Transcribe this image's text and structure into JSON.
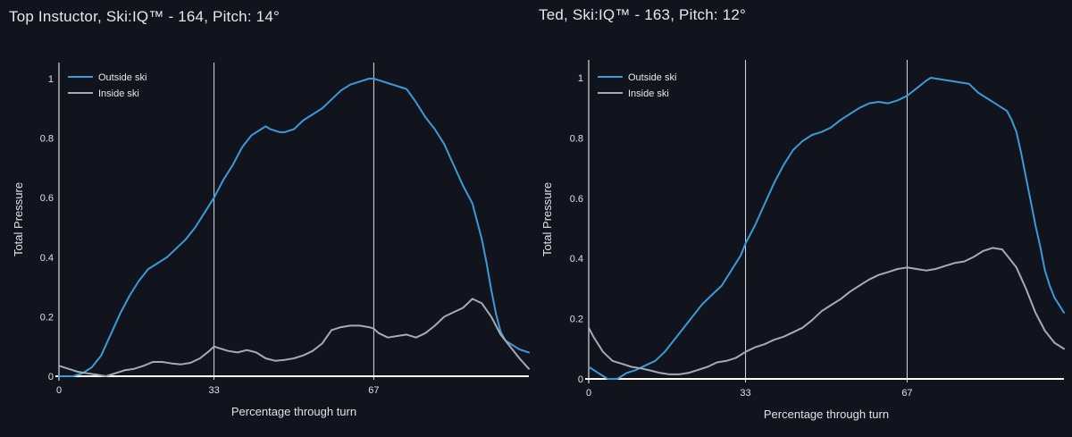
{
  "chart_data": [
    {
      "type": "line",
      "title": "Top Instuctor, Ski:IQ™ - 164, Pitch: 14°",
      "xlabel": "Percentage through turn",
      "ylabel": "Total Pressure",
      "xlim": [
        0,
        100
      ],
      "ylim": [
        0,
        1.05
      ],
      "xticks": [
        0,
        33,
        67
      ],
      "yticks": [
        0,
        0.2,
        0.4,
        0.6,
        0.8,
        1
      ],
      "ytick_labels": [
        "0",
        "0.2",
        "0.4",
        "0.6",
        "0.8",
        "1"
      ],
      "vlines": [
        33,
        67
      ],
      "grid": false,
      "legend_position": "top-left",
      "series": [
        {
          "name": "Outside ski",
          "color": "#3b9ad9",
          "x": [
            0,
            3,
            5,
            7,
            9,
            11,
            13,
            15,
            17,
            19,
            21,
            23,
            25,
            27,
            29,
            31,
            33,
            35,
            37,
            39,
            41,
            43,
            44,
            45,
            47,
            48,
            50,
            52,
            54,
            56,
            58,
            60,
            62,
            64,
            66,
            67,
            68,
            70,
            72,
            73,
            74,
            76,
            78,
            80,
            82,
            84,
            86,
            88,
            89,
            90,
            91,
            92,
            93,
            94,
            95,
            96,
            97,
            98,
            99,
            100
          ],
          "y": [
            0.0,
            0.0,
            0.01,
            0.03,
            0.07,
            0.14,
            0.21,
            0.27,
            0.32,
            0.36,
            0.38,
            0.4,
            0.43,
            0.46,
            0.5,
            0.55,
            0.6,
            0.66,
            0.71,
            0.77,
            0.81,
            0.83,
            0.84,
            0.83,
            0.82,
            0.82,
            0.83,
            0.86,
            0.88,
            0.9,
            0.93,
            0.96,
            0.98,
            0.99,
            1.0,
            1.0,
            0.995,
            0.985,
            0.975,
            0.97,
            0.965,
            0.92,
            0.87,
            0.83,
            0.78,
            0.71,
            0.64,
            0.58,
            0.52,
            0.46,
            0.38,
            0.29,
            0.21,
            0.15,
            0.12,
            0.11,
            0.1,
            0.09,
            0.085,
            0.08
          ]
        },
        {
          "name": "Inside ski",
          "color": "#a2acb8",
          "x": [
            0,
            2,
            4,
            6,
            8,
            10,
            12,
            14,
            16,
            18,
            20,
            22,
            24,
            26,
            28,
            30,
            32,
            33,
            34,
            36,
            38,
            40,
            42,
            44,
            46,
            48,
            50,
            52,
            54,
            56,
            58,
            60,
            62,
            64,
            66,
            67,
            68,
            70,
            72,
            74,
            76,
            78,
            80,
            82,
            84,
            86,
            88,
            90,
            92,
            94,
            96,
            98,
            100
          ],
          "y": [
            0.035,
            0.025,
            0.015,
            0.01,
            0.005,
            0.0,
            0.01,
            0.02,
            0.025,
            0.035,
            0.048,
            0.048,
            0.043,
            0.04,
            0.045,
            0.06,
            0.085,
            0.1,
            0.095,
            0.085,
            0.08,
            0.088,
            0.08,
            0.06,
            0.052,
            0.055,
            0.06,
            0.07,
            0.085,
            0.11,
            0.155,
            0.165,
            0.17,
            0.17,
            0.165,
            0.16,
            0.145,
            0.13,
            0.135,
            0.14,
            0.13,
            0.145,
            0.17,
            0.2,
            0.215,
            0.23,
            0.26,
            0.245,
            0.2,
            0.14,
            0.1,
            0.06,
            0.025
          ]
        }
      ]
    },
    {
      "type": "line",
      "title": "Ted, Ski:IQ™ - 163, Pitch: 12°",
      "xlabel": "Percentage through turn",
      "ylabel": "Total Pressure",
      "xlim": [
        0,
        100
      ],
      "ylim": [
        0,
        1.05
      ],
      "xticks": [
        0,
        33,
        67
      ],
      "yticks": [
        0,
        0.2,
        0.4,
        0.6,
        0.8,
        1
      ],
      "ytick_labels": [
        "0",
        "0.2",
        "0.4",
        "0.6",
        "0.8",
        "1"
      ],
      "vlines": [
        33,
        67
      ],
      "grid": false,
      "legend_position": "top-left",
      "series": [
        {
          "name": "Outside ski",
          "color": "#3b9ad9",
          "x": [
            0,
            2,
            4,
            6,
            8,
            10,
            12,
            14,
            16,
            18,
            20,
            22,
            24,
            26,
            28,
            30,
            32,
            33,
            35,
            37,
            39,
            41,
            43,
            45,
            47,
            49,
            51,
            53,
            55,
            57,
            59,
            61,
            63,
            65,
            67,
            69,
            71,
            72,
            74,
            76,
            78,
            80,
            82,
            84,
            86,
            88,
            89,
            90,
            91,
            92,
            93,
            94,
            95,
            96,
            97,
            98,
            100
          ],
          "y": [
            0.04,
            0.02,
            0.0,
            0.0,
            0.02,
            0.03,
            0.045,
            0.06,
            0.09,
            0.13,
            0.17,
            0.21,
            0.25,
            0.28,
            0.31,
            0.36,
            0.41,
            0.45,
            0.51,
            0.58,
            0.65,
            0.71,
            0.76,
            0.79,
            0.81,
            0.82,
            0.835,
            0.86,
            0.88,
            0.9,
            0.915,
            0.92,
            0.915,
            0.925,
            0.94,
            0.965,
            0.99,
            1.0,
            0.995,
            0.99,
            0.985,
            0.98,
            0.95,
            0.93,
            0.91,
            0.89,
            0.86,
            0.82,
            0.75,
            0.67,
            0.59,
            0.51,
            0.44,
            0.36,
            0.31,
            0.27,
            0.22
          ]
        },
        {
          "name": "Inside ski",
          "color": "#a2acb8",
          "x": [
            0,
            1,
            3,
            5,
            7,
            9,
            11,
            13,
            15,
            17,
            19,
            21,
            23,
            25,
            27,
            29,
            31,
            33,
            35,
            37,
            39,
            41,
            43,
            45,
            47,
            49,
            51,
            53,
            55,
            57,
            59,
            61,
            63,
            65,
            67,
            69,
            71,
            73,
            75,
            77,
            79,
            81,
            83,
            85,
            87,
            88,
            90,
            92,
            94,
            96,
            98,
            100
          ],
          "y": [
            0.17,
            0.14,
            0.09,
            0.06,
            0.05,
            0.04,
            0.035,
            0.028,
            0.02,
            0.015,
            0.015,
            0.02,
            0.03,
            0.04,
            0.055,
            0.06,
            0.07,
            0.09,
            0.105,
            0.115,
            0.13,
            0.14,
            0.155,
            0.17,
            0.195,
            0.225,
            0.245,
            0.265,
            0.29,
            0.31,
            0.33,
            0.345,
            0.355,
            0.365,
            0.37,
            0.365,
            0.36,
            0.365,
            0.375,
            0.385,
            0.39,
            0.405,
            0.425,
            0.435,
            0.43,
            0.41,
            0.37,
            0.3,
            0.22,
            0.16,
            0.12,
            0.1
          ]
        }
      ]
    }
  ]
}
